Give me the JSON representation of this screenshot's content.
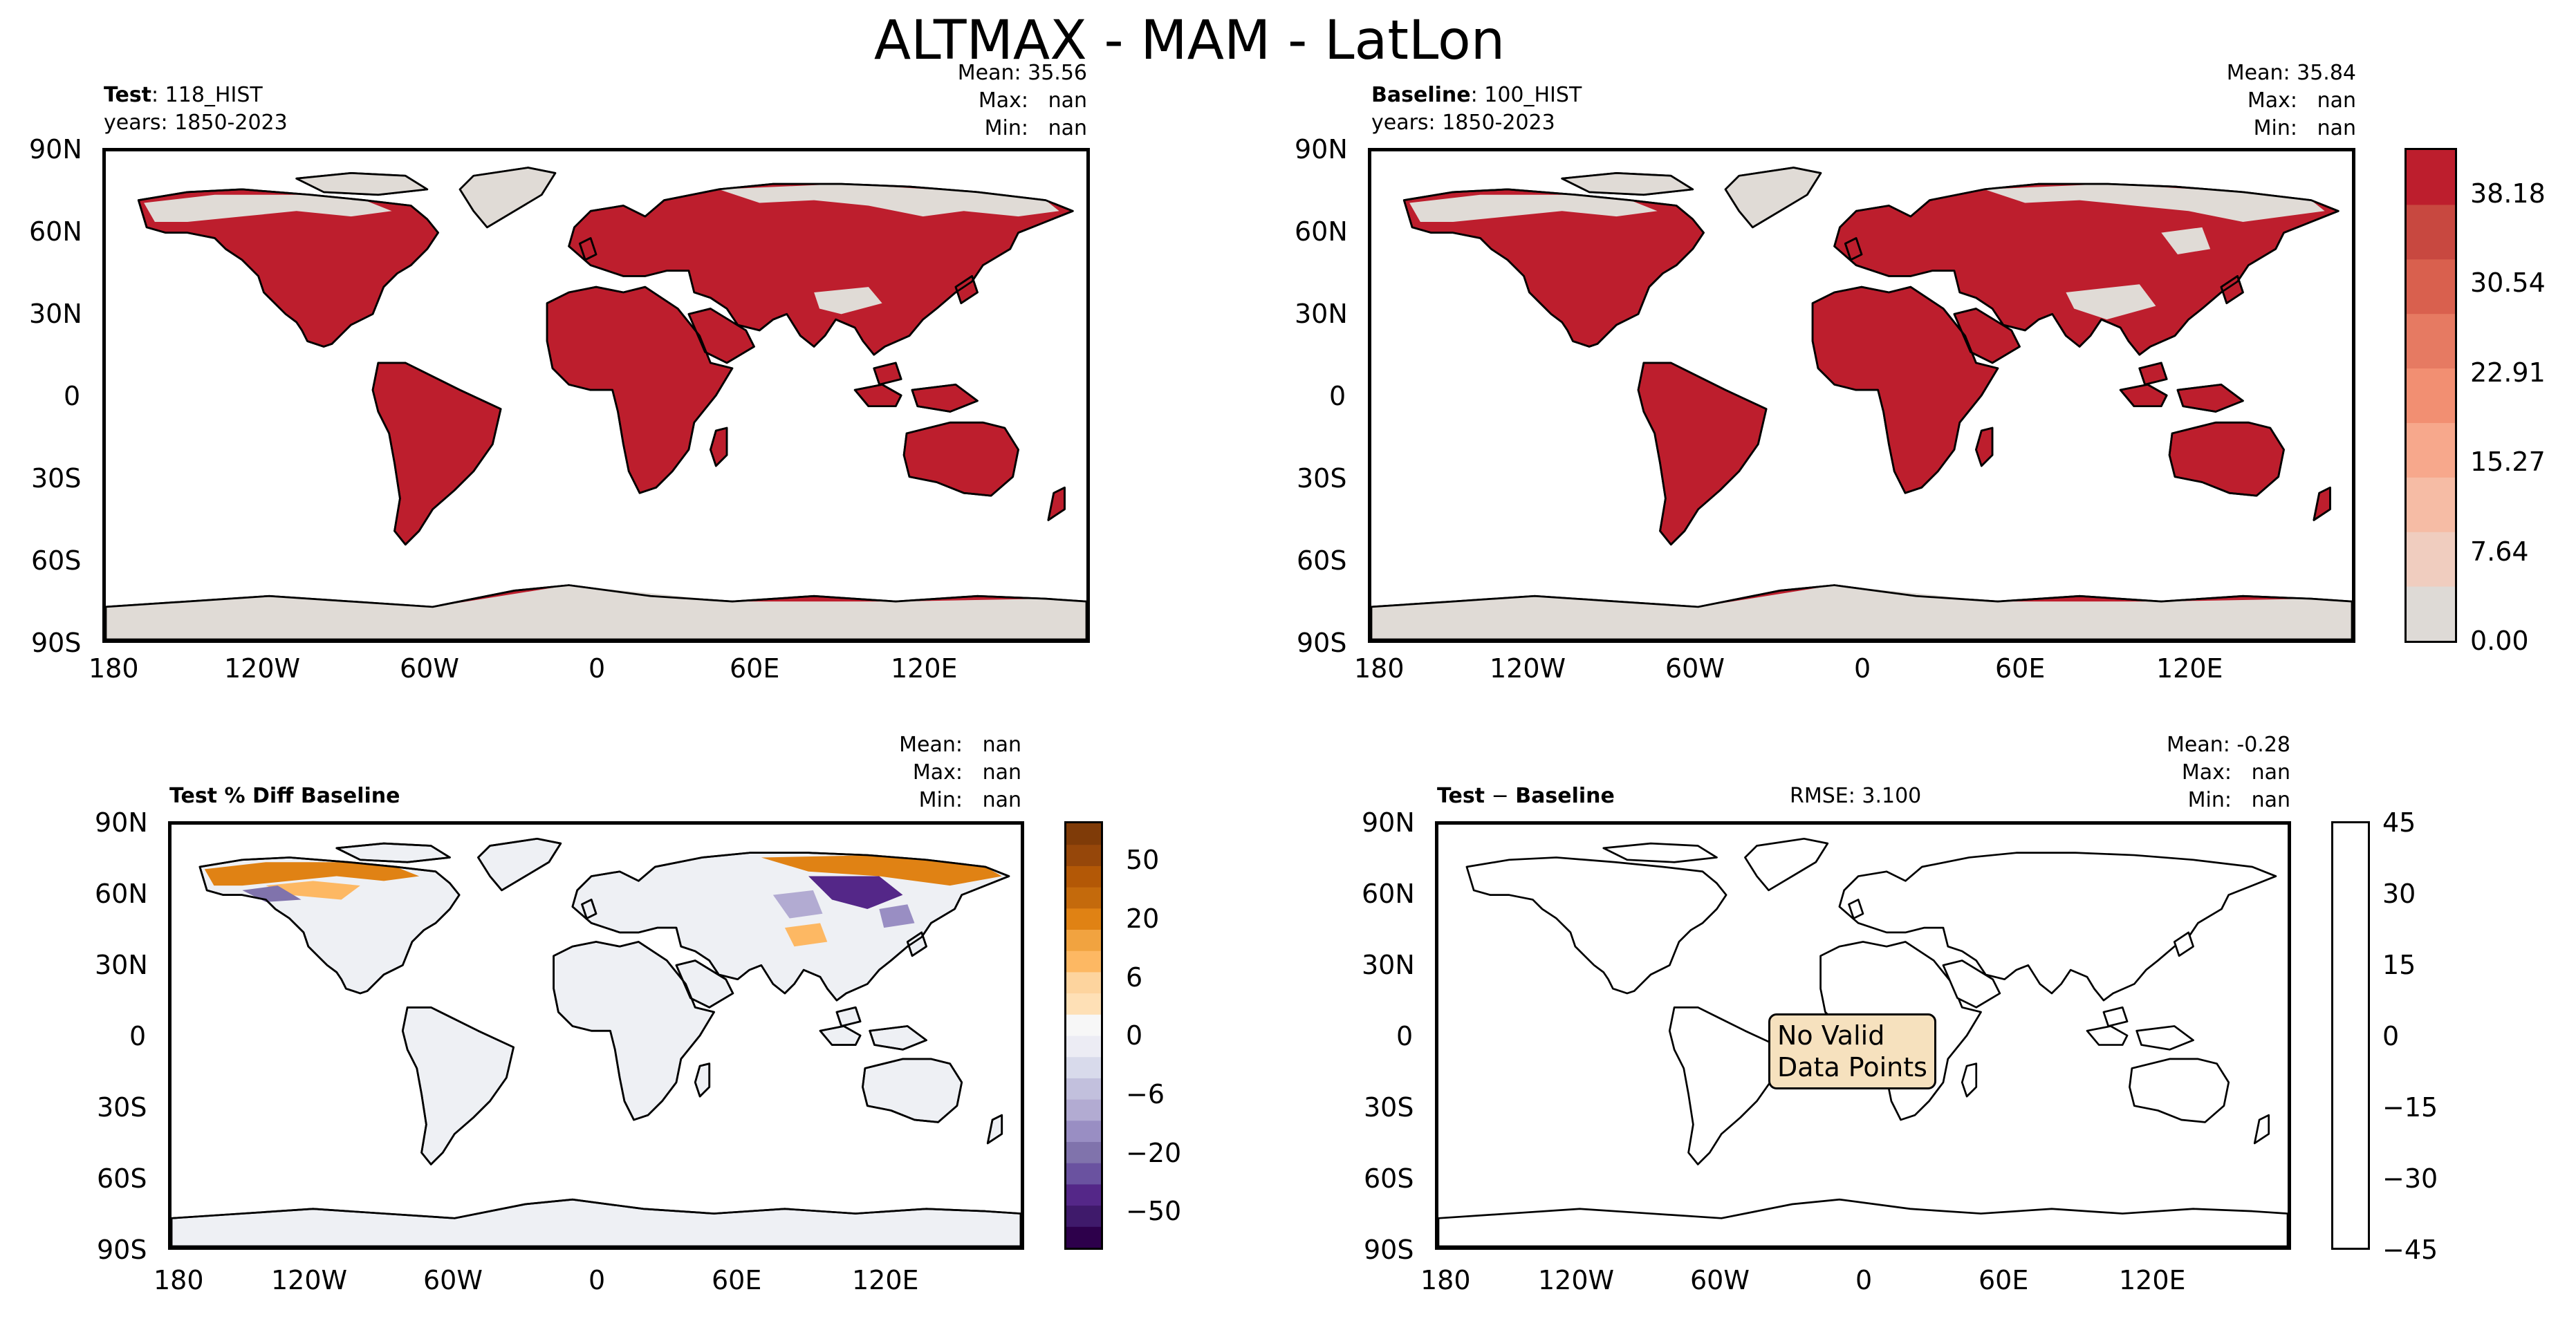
{
  "title": "ALTMAX - MAM - LatLon",
  "panels": {
    "test": {
      "label_bold": "Test",
      "label_rest": ": 118_HIST",
      "years": "years: 1850-2023",
      "stats": "Mean: 35.56\nMax:   nan\nMin:   nan",
      "xticks": [
        "180",
        "120W",
        "60W",
        "0",
        "60E",
        "120E"
      ],
      "yticks": [
        "90N",
        "60N",
        "30N",
        "0",
        "30S",
        "60S",
        "90S"
      ]
    },
    "baseline": {
      "label_bold": "Baseline",
      "label_rest": ": 100_HIST",
      "years": "years: 1850-2023",
      "stats": "Mean: 35.84\nMax:   nan\nMin:   nan",
      "xticks": [
        "180",
        "120W",
        "60W",
        "0",
        "60E",
        "120E"
      ],
      "yticks": [
        "90N",
        "60N",
        "30N",
        "0",
        "30S",
        "60S",
        "90S"
      ]
    },
    "pctdiff": {
      "label": "Test % Diff Baseline",
      "stats": "Mean:   nan\nMax:   nan\nMin:   nan",
      "xticks": [
        "180",
        "120W",
        "60W",
        "0",
        "60E",
        "120E"
      ],
      "yticks": [
        "90N",
        "60N",
        "30N",
        "0",
        "30S",
        "60S",
        "90S"
      ]
    },
    "diff": {
      "label_bold": "Test",
      "label_rest": " − ",
      "label_bold2": "Baseline",
      "rmse": "RMSE: 3.100",
      "stats": "Mean: -0.28\nMax:   nan\nMin:   nan",
      "nodata": "No Valid\nData Points",
      "xticks": [
        "180",
        "120W",
        "60W",
        "0",
        "60E",
        "120E"
      ],
      "yticks": [
        "90N",
        "60N",
        "30N",
        "0",
        "30S",
        "60S",
        "90S"
      ]
    }
  },
  "colorbars": {
    "main": {
      "ticks": [
        "38.18",
        "30.54",
        "22.91",
        "15.27",
        "7.64",
        "0.00"
      ],
      "colors": [
        "#dedad6",
        "#f0cdbf",
        "#f6bca5",
        "#f7a88c",
        "#f28f72",
        "#e67a62",
        "#d9604e",
        "#c84840",
        "#bd1e2d"
      ]
    },
    "pctdiff": {
      "ticks": [
        "50",
        "20",
        "6",
        "0",
        "−6",
        "−20",
        "−50"
      ],
      "colors": [
        "#7f3b08",
        "#96470a",
        "#b35806",
        "#c46a0c",
        "#e08214",
        "#f1a340",
        "#fdb863",
        "#fdd49e",
        "#fee0b6",
        "#f7f7f7",
        "#ececf4",
        "#d8daeb",
        "#c2c0dd",
        "#b2abd2",
        "#998ec3",
        "#8073ac",
        "#6a52a0",
        "#542788",
        "#3f1a6b",
        "#2d004b"
      ]
    },
    "diff": {
      "ticks": [
        "45",
        "30",
        "15",
        "0",
        "−15",
        "−30",
        "−45"
      ]
    }
  },
  "colors": {
    "land_value": "#bd1e2d",
    "land_missing": "#e0dbd6",
    "diff_land": "#eef0f4",
    "diff_orange": "#e08214",
    "diff_purple": "#542788",
    "nodata_box": "#f6e1be"
  }
}
